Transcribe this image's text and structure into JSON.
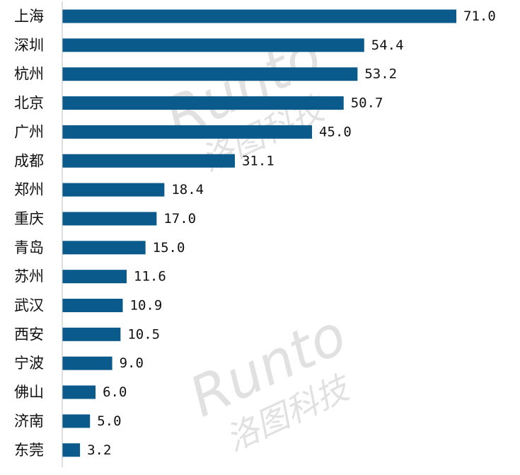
{
  "chart_data": {
    "type": "bar",
    "orientation": "horizontal",
    "categories": [
      "上海",
      "深圳",
      "杭州",
      "北京",
      "广州",
      "成都",
      "郑州",
      "重庆",
      "青岛",
      "苏州",
      "武汉",
      "西安",
      "宁波",
      "佛山",
      "济南",
      "东莞"
    ],
    "values": [
      71.0,
      54.4,
      53.2,
      50.7,
      45.0,
      31.1,
      18.4,
      17.0,
      15.0,
      11.6,
      10.9,
      10.5,
      9.0,
      6.0,
      5.0,
      3.2
    ],
    "value_labels": [
      "71.0",
      "54.4",
      "53.2",
      "50.7",
      "45.0",
      "31.1",
      "18.4",
      "17.0",
      "15.0",
      "11.6",
      "10.9",
      "10.5",
      "9.0",
      "6.0",
      "5.0",
      "3.2"
    ],
    "title": "",
    "xlabel": "",
    "ylabel": "",
    "xlim": [
      0,
      71.0
    ],
    "grid": false,
    "legend": "none",
    "bar_color": "#0b5a8c"
  },
  "watermark": {
    "brand": "Runto",
    "chinese": "洛图科技",
    "color": "#c9c9c9"
  }
}
